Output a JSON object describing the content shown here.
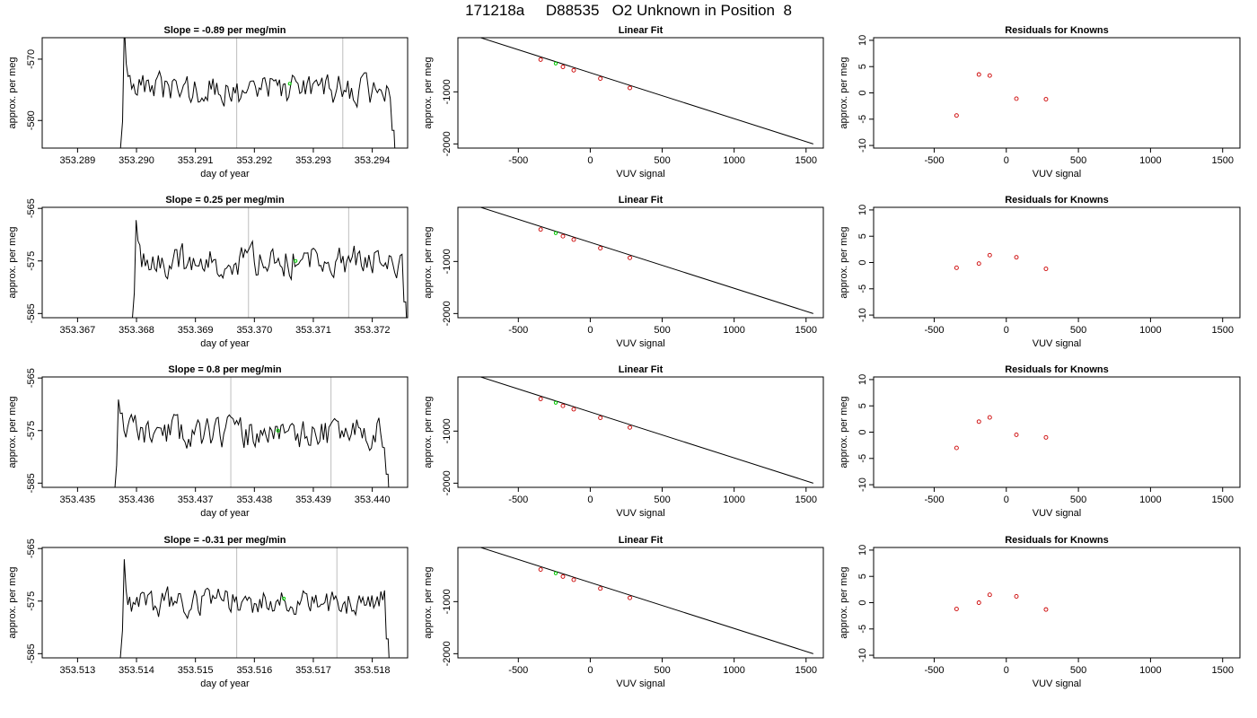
{
  "main_title": "171218a     D88535   O2 Unknown in Position  8",
  "chart_data": [
    {
      "type": "line",
      "row": 0,
      "title": "Slope =  -0.89  per meg/min",
      "xlabel": "day of year",
      "ylabel": "approx. per meg",
      "xlim": [
        353.2884,
        353.2946
      ],
      "ylim": [
        -584.5,
        -566.5
      ],
      "xticks": [
        353.289,
        353.29,
        353.291,
        353.292,
        353.293,
        353.294
      ],
      "xtick_labels": [
        "353.289",
        "353.290",
        "353.291",
        "353.292",
        "353.293",
        "353.294"
      ],
      "yticks": [
        -580,
        -570
      ],
      "ytick_labels": [
        "-580",
        "-570"
      ],
      "vlines": [
        353.2917,
        353.2935
      ],
      "signal": {
        "x_start": 353.2897,
        "x_end": 353.2944,
        "mean": -575.0,
        "amp": 2.2,
        "seed": 3
      },
      "marker": {
        "x": 353.2926,
        "y": -574.0
      },
      "colors": {
        "line": "#000000",
        "vline": "#bebebe",
        "marker": "#00cc00"
      }
    },
    {
      "type": "line",
      "row": 0,
      "title": "Linear Fit",
      "xlabel": "VUV signal",
      "ylabel": "approx. per meg",
      "xlim": [
        -920,
        1620
      ],
      "ylim": [
        -2080,
        40
      ],
      "xticks": [
        -500,
        0,
        500,
        1000,
        1500
      ],
      "xtick_labels": [
        "-500",
        "0",
        "500",
        "1000",
        "1500"
      ],
      "yticks": [
        -2000,
        -1000
      ],
      "ytick_labels": [
        "-2000",
        "-1000"
      ],
      "line": {
        "x": [
          -830,
          1550
        ],
        "y": [
          100,
          -2000
        ]
      },
      "points": {
        "x": [
          -345,
          -190,
          -115,
          70,
          275
        ],
        "y": [
          -380,
          -520,
          -585,
          -745,
          -925
        ]
      },
      "unknown": {
        "x": -240,
        "y": -455
      },
      "colors": {
        "line": "#000000",
        "points": "#cc0000",
        "unknown": "#00cc00"
      }
    },
    {
      "type": "scatter",
      "row": 0,
      "title": "Residuals for Knowns",
      "xlabel": "VUV signal",
      "ylabel": "approx. per meg",
      "xlim": [
        -920,
        1620
      ],
      "ylim": [
        -10.5,
        10.5
      ],
      "xticks": [
        -500,
        0,
        500,
        1000,
        1500
      ],
      "xtick_labels": [
        "-500",
        "0",
        "500",
        "1000",
        "1500"
      ],
      "yticks": [
        -10,
        -5,
        0,
        5,
        10
      ],
      "ytick_labels": [
        "-10",
        "-5",
        "0",
        "5",
        "10"
      ],
      "points": {
        "x": [
          -345,
          -190,
          -115,
          70,
          275
        ],
        "y": [
          -4.3,
          3.5,
          3.3,
          -1.1,
          -1.2
        ]
      },
      "colors": {
        "points": "#cc0000"
      }
    },
    {
      "type": "line",
      "row": 1,
      "title": "Slope =  0.25  per meg/min",
      "xlabel": "day of year",
      "ylabel": "approx. per meg",
      "xlim": [
        353.3664,
        353.3726
      ],
      "ylim": [
        -585.8,
        -564.8
      ],
      "xticks": [
        353.367,
        353.368,
        353.369,
        353.37,
        353.371,
        353.372
      ],
      "xtick_labels": [
        "353.367",
        "353.368",
        "353.369",
        "353.370",
        "353.371",
        "353.372"
      ],
      "yticks": [
        -585,
        -575,
        -565
      ],
      "ytick_labels": [
        "-585",
        "-575",
        "-565"
      ],
      "vlines": [
        353.3699,
        353.3716
      ],
      "signal": {
        "x_start": 353.3679,
        "x_end": 353.3726,
        "mean": -575.0,
        "amp": 2.6,
        "seed": 7
      },
      "marker": {
        "x": 353.3707,
        "y": -575.0
      },
      "colors": {
        "line": "#000000",
        "vline": "#bebebe",
        "marker": "#00cc00"
      }
    },
    {
      "type": "line",
      "row": 1,
      "title": "Linear Fit",
      "xlabel": "VUV signal",
      "ylabel": "approx. per meg",
      "xlim": [
        -920,
        1620
      ],
      "ylim": [
        -2080,
        40
      ],
      "xticks": [
        -500,
        0,
        500,
        1000,
        1500
      ],
      "xtick_labels": [
        "-500",
        "0",
        "500",
        "1000",
        "1500"
      ],
      "yticks": [
        -2000,
        -1000
      ],
      "ytick_labels": [
        "-2000",
        "-1000"
      ],
      "line": {
        "x": [
          -830,
          1550
        ],
        "y": [
          100,
          -2000
        ]
      },
      "points": {
        "x": [
          -345,
          -190,
          -115,
          70,
          275
        ],
        "y": [
          -385,
          -515,
          -580,
          -745,
          -930
        ]
      },
      "unknown": {
        "x": -240,
        "y": -455
      },
      "colors": {
        "line": "#000000",
        "points": "#cc0000",
        "unknown": "#00cc00"
      }
    },
    {
      "type": "scatter",
      "row": 1,
      "title": "Residuals for Knowns",
      "xlabel": "VUV signal",
      "ylabel": "approx. per meg",
      "xlim": [
        -920,
        1620
      ],
      "ylim": [
        -10.5,
        10.5
      ],
      "xticks": [
        -500,
        0,
        500,
        1000,
        1500
      ],
      "xtick_labels": [
        "-500",
        "0",
        "500",
        "1000",
        "1500"
      ],
      "yticks": [
        -10,
        -5,
        0,
        5,
        10
      ],
      "ytick_labels": [
        "-10",
        "-5",
        "0",
        "5",
        "10"
      ],
      "points": {
        "x": [
          -345,
          -190,
          -115,
          70,
          275
        ],
        "y": [
          -1.0,
          -0.2,
          1.4,
          1.0,
          -1.2
        ]
      },
      "colors": {
        "points": "#cc0000"
      }
    },
    {
      "type": "line",
      "row": 2,
      "title": "Slope =  0.8  per meg/min",
      "xlabel": "day of year",
      "ylabel": "approx. per meg",
      "xlim": [
        353.4344,
        353.4406
      ],
      "ylim": [
        -585.8,
        -564.8
      ],
      "xticks": [
        353.435,
        353.436,
        353.437,
        353.438,
        353.439,
        353.44
      ],
      "xtick_labels": [
        "353.435",
        "353.436",
        "353.437",
        "353.438",
        "353.439",
        "353.440"
      ],
      "yticks": [
        -585,
        -575,
        -565
      ],
      "ytick_labels": [
        "-585",
        "-575",
        "-565"
      ],
      "vlines": [
        353.4376,
        353.4393
      ],
      "signal": {
        "x_start": 353.4356,
        "x_end": 353.4403,
        "mean": -575.5,
        "amp": 2.6,
        "seed": 11
      },
      "marker": {
        "x": 353.4384,
        "y": -575.0
      },
      "colors": {
        "line": "#000000",
        "vline": "#bebebe",
        "marker": "#00cc00"
      }
    },
    {
      "type": "line",
      "row": 2,
      "title": "Linear Fit",
      "xlabel": "VUV signal",
      "ylabel": "approx. per meg",
      "xlim": [
        -920,
        1620
      ],
      "ylim": [
        -2080,
        40
      ],
      "xticks": [
        -500,
        0,
        500,
        1000,
        1500
      ],
      "xtick_labels": [
        "-500",
        "0",
        "500",
        "1000",
        "1500"
      ],
      "yticks": [
        -2000,
        -1000
      ],
      "ytick_labels": [
        "-2000",
        "-1000"
      ],
      "line": {
        "x": [
          -830,
          1550
        ],
        "y": [
          100,
          -2000
        ]
      },
      "points": {
        "x": [
          -345,
          -190,
          -115,
          70,
          275
        ],
        "y": [
          -383,
          -515,
          -580,
          -745,
          -930
        ]
      },
      "unknown": {
        "x": -240,
        "y": -455
      },
      "colors": {
        "line": "#000000",
        "points": "#cc0000",
        "unknown": "#00cc00"
      }
    },
    {
      "type": "scatter",
      "row": 2,
      "title": "Residuals for Knowns",
      "xlabel": "VUV signal",
      "ylabel": "approx. per meg",
      "xlim": [
        -920,
        1620
      ],
      "ylim": [
        -10.5,
        10.5
      ],
      "xticks": [
        -500,
        0,
        500,
        1000,
        1500
      ],
      "xtick_labels": [
        "-500",
        "0",
        "500",
        "1000",
        "1500"
      ],
      "yticks": [
        -10,
        -5,
        0,
        5,
        10
      ],
      "ytick_labels": [
        "-10",
        "-5",
        "0",
        "5",
        "10"
      ],
      "points": {
        "x": [
          -345,
          -190,
          -115,
          70,
          275
        ],
        "y": [
          -3.0,
          2.0,
          2.8,
          -0.5,
          -1.0
        ]
      },
      "colors": {
        "points": "#cc0000"
      }
    },
    {
      "type": "line",
      "row": 3,
      "title": "Slope =  -0.31  per meg/min",
      "xlabel": "day of year",
      "ylabel": "approx. per meg",
      "xlim": [
        353.5124,
        353.5186
      ],
      "ylim": [
        -585.8,
        -564.8
      ],
      "xticks": [
        353.513,
        353.514,
        353.515,
        353.516,
        353.517,
        353.518
      ],
      "xtick_labels": [
        "353.513",
        "353.514",
        "353.515",
        "353.516",
        "353.517",
        "353.518"
      ],
      "yticks": [
        -585,
        -575,
        -565
      ],
      "ytick_labels": [
        "-585",
        "-575",
        "-565"
      ],
      "vlines": [
        353.5157,
        353.5174
      ],
      "signal": {
        "x_start": 353.5137,
        "x_end": 353.5183,
        "mean": -575.0,
        "amp": 2.4,
        "seed": 17
      },
      "marker": {
        "x": 353.5165,
        "y": -574.5
      },
      "colors": {
        "line": "#000000",
        "vline": "#bebebe",
        "marker": "#00cc00"
      }
    },
    {
      "type": "line",
      "row": 3,
      "title": "Linear Fit",
      "xlabel": "VUV signal",
      "ylabel": "approx. per meg",
      "xlim": [
        -920,
        1620
      ],
      "ylim": [
        -2080,
        40
      ],
      "xticks": [
        -500,
        0,
        500,
        1000,
        1500
      ],
      "xtick_labels": [
        "-500",
        "0",
        "500",
        "1000",
        "1500"
      ],
      "yticks": [
        -2000,
        -1000
      ],
      "ytick_labels": [
        "-2000",
        "-1000"
      ],
      "line": {
        "x": [
          -830,
          1550
        ],
        "y": [
          100,
          -2000
        ]
      },
      "points": {
        "x": [
          -345,
          -190,
          -115,
          70,
          275
        ],
        "y": [
          -383,
          -518,
          -580,
          -748,
          -928
        ]
      },
      "unknown": {
        "x": -240,
        "y": -455
      },
      "colors": {
        "line": "#000000",
        "points": "#cc0000",
        "unknown": "#00cc00"
      }
    },
    {
      "type": "scatter",
      "row": 3,
      "title": "Residuals for Knowns",
      "xlabel": "VUV signal",
      "ylabel": "approx. per meg",
      "xlim": [
        -920,
        1620
      ],
      "ylim": [
        -10.5,
        10.5
      ],
      "xticks": [
        -500,
        0,
        500,
        1000,
        1500
      ],
      "xtick_labels": [
        "-500",
        "0",
        "500",
        "1000",
        "1500"
      ],
      "yticks": [
        -10,
        -5,
        0,
        5,
        10
      ],
      "ytick_labels": [
        "-10",
        "-5",
        "0",
        "5",
        "10"
      ],
      "points": {
        "x": [
          -345,
          -190,
          -115,
          70,
          275
        ],
        "y": [
          -1.2,
          0.0,
          1.5,
          1.2,
          -1.3
        ]
      },
      "colors": {
        "points": "#cc0000"
      }
    }
  ]
}
